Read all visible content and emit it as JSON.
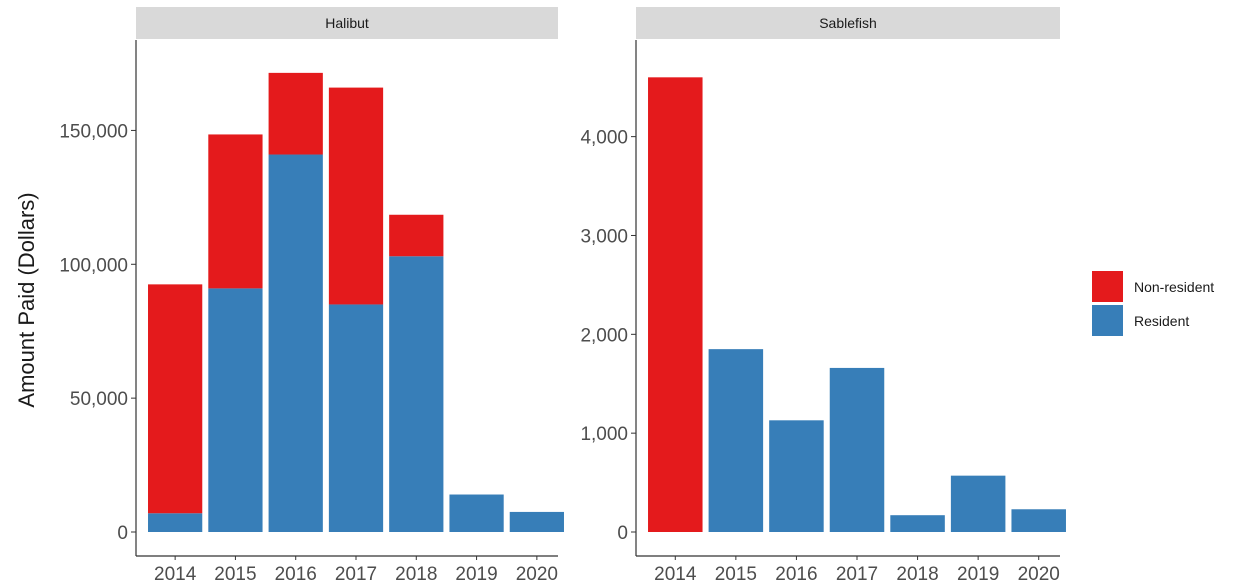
{
  "chart_data": {
    "type": "bar",
    "stacked": true,
    "ylabel": "Amount Paid (Dollars)",
    "categories": [
      "2014",
      "2015",
      "2016",
      "2017",
      "2018",
      "2019",
      "2020"
    ],
    "legend": {
      "placement": "right",
      "entries": [
        {
          "name": "Non-resident",
          "color": "#e41a1c"
        },
        {
          "name": "Resident",
          "color": "#377eb8"
        }
      ]
    },
    "panels": [
      {
        "title": "Halibut",
        "ylim": [
          0,
          175000
        ],
        "yticks": [
          0,
          50000,
          100000,
          150000
        ],
        "ytick_labels": [
          "0",
          "50,000",
          "100,000",
          "150,000"
        ],
        "series": [
          {
            "name": "Resident",
            "values": [
              7000,
              91000,
              141000,
              85000,
              103000,
              14000,
              7500
            ]
          },
          {
            "name": "Non-resident",
            "values": [
              85500,
              57500,
              30500,
              81000,
              15500,
              0,
              0
            ]
          }
        ]
      },
      {
        "title": "Sablefish",
        "ylim": [
          0,
          4750
        ],
        "yticks": [
          0,
          1000,
          2000,
          3000,
          4000
        ],
        "ytick_labels": [
          "0",
          "1,000",
          "2,000",
          "3,000",
          "4,000"
        ],
        "series": [
          {
            "name": "Resident",
            "values": [
              0,
              1850,
              1130,
              1660,
              170,
              570,
              230
            ]
          },
          {
            "name": "Non-resident",
            "values": [
              4600,
              0,
              0,
              0,
              0,
              0,
              0
            ]
          }
        ]
      }
    ]
  }
}
